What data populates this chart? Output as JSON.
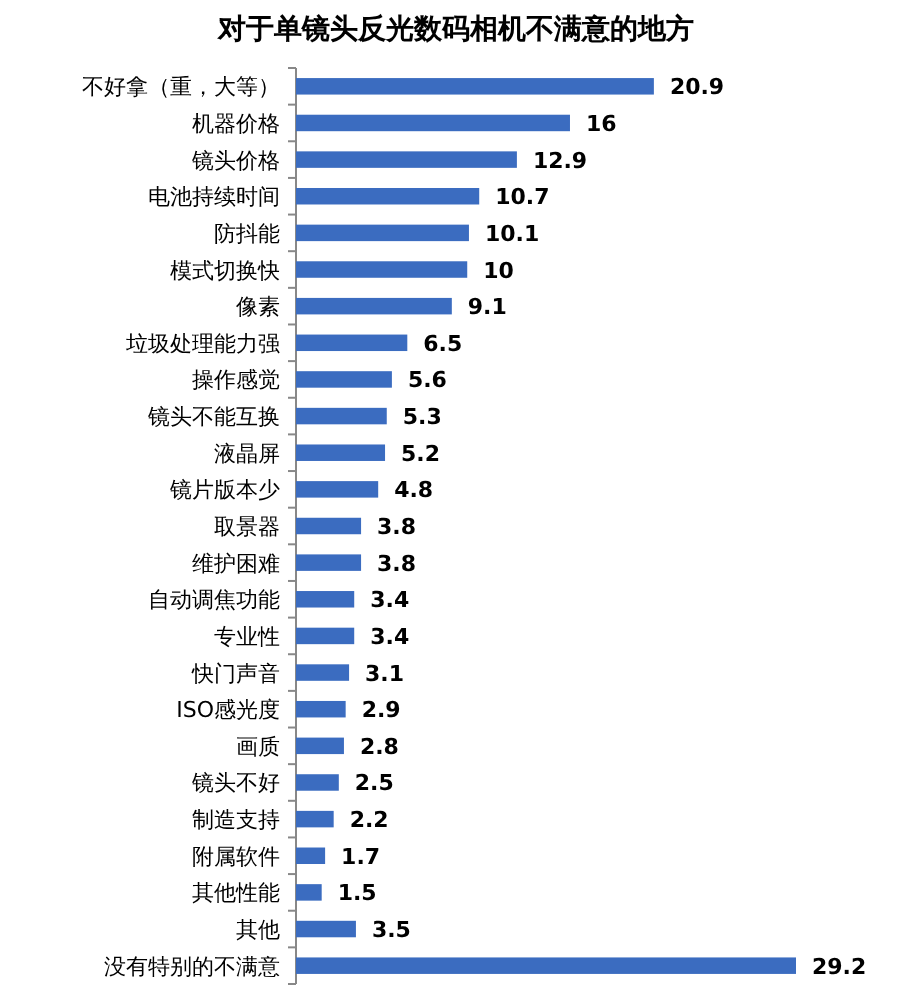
{
  "chart_data": {
    "type": "bar",
    "orientation": "horizontal",
    "title": "对于单镜头反光数码相机不满意的地方",
    "categories": [
      "不好拿（重，大等）",
      "机器价格",
      "镜头价格",
      "电池持续时间",
      "防抖能",
      "模式切换快",
      "像素",
      "垃圾处理能力强",
      "操作感觉",
      "镜头不能互换",
      "液晶屏",
      "镜片版本少",
      "取景器",
      "维护困难",
      "自动调焦功能",
      "专业性",
      "快门声音",
      "ISO感光度",
      "画质",
      "镜头不好",
      "制造支持",
      "附属软件",
      "其他性能",
      "其他",
      "没有特别的不满意"
    ],
    "values": [
      20.9,
      16,
      12.9,
      10.7,
      10.1,
      10,
      9.1,
      6.5,
      5.6,
      5.3,
      5.2,
      4.8,
      3.8,
      3.8,
      3.4,
      3.4,
      3.1,
      2.9,
      2.8,
      2.5,
      2.2,
      1.7,
      1.5,
      3.5,
      29.2
    ],
    "color": "#3b6cc0",
    "data_labels": true
  }
}
